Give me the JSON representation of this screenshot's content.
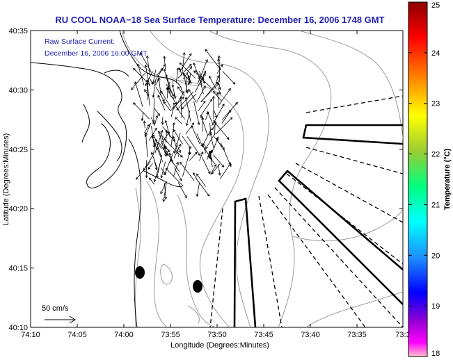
{
  "title": "RU COOL  NOAA−18  Sea Surface Temperature:  December 16, 2006 1748 GMT",
  "annotation": {
    "line1": "Raw Surface Current:",
    "line2": "December 16, 2006 16:00 GMT"
  },
  "scale_label": "50 cm/s",
  "xlabel": "Longitude (Degrees:Minutes)",
  "ylabel": "Latitude (Degrees:Minutes)",
  "x_ticks": [
    "74:10",
    "74:05",
    "74:00",
    "73:55",
    "73:50",
    "73:45",
    "73:40",
    "73:35",
    "73:3"
  ],
  "y_ticks": [
    "40:35",
    "40:30",
    "40:25",
    "40:20",
    "40:15",
    "40:10"
  ],
  "colorbar": {
    "label": "Temperature (°C)",
    "ticks": [
      "25",
      "24",
      "23",
      "22",
      "21",
      "20",
      "19",
      "18"
    ],
    "colors": [
      "#8b0000",
      "#ff0000",
      "#ff8c00",
      "#ffff00",
      "#9acd32",
      "#00ff7f",
      "#00ffff",
      "#1e90ff",
      "#0000ff",
      "#9400d3",
      "#ff00ff",
      "#ffc0cb"
    ]
  },
  "colors": {
    "title": "#1f1fb4",
    "annotation": "#1f1fb4",
    "contour": "#9a9a9a"
  }
}
